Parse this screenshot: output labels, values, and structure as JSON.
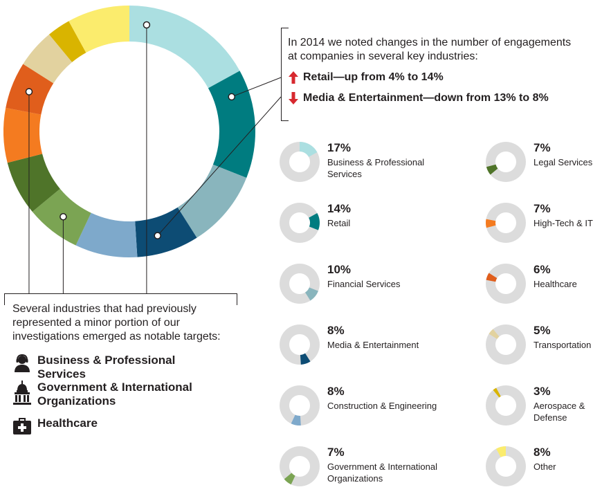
{
  "chart_data": [
    {
      "type": "pie",
      "variant": "donut",
      "categories": [
        "Business & Professional Services",
        "Retail",
        "Financial Services",
        "Media & Entertainment",
        "Construction & Engineering",
        "Government & International Organizations",
        "Legal Services",
        "High-Tech & IT",
        "Healthcare",
        "Transportation",
        "Aerospace & Defense",
        "Other"
      ],
      "values": [
        17,
        14,
        10,
        8,
        8,
        7,
        7,
        7,
        6,
        5,
        3,
        8
      ],
      "colors": [
        "#abdfe1",
        "#007c80",
        "#89b5bd",
        "#0d4c74",
        "#7ea9cb",
        "#7ba453",
        "#4f7429",
        "#f47b20",
        "#e05e1c",
        "#e2d29f",
        "#d9b400",
        "#fbec6d"
      ]
    }
  ],
  "top_callout": {
    "intro": "In 2014 we noted changes in the number of engagements at companies in several key industries:",
    "up_text": "Retail—up from 4% to 14%",
    "down_text": "Media & Entertainment—down from 13% to 8%",
    "up_color": "#d7282f",
    "down_color": "#d7282f"
  },
  "bottom_callout": {
    "intro": "Several industries that had previously represented a minor portion of our investigations emerged as notable targets:",
    "items": [
      {
        "label": "Business & Professional Services",
        "icon": "business-person-icon"
      },
      {
        "label": "Government & International Organizations",
        "icon": "capitol-building-icon"
      },
      {
        "label": "Healthcare",
        "icon": "medical-kit-icon"
      }
    ]
  },
  "minis": [
    {
      "pct": "17%",
      "label": "Business & Professional Services",
      "value": 17,
      "start": 0,
      "color": "#abdfe1"
    },
    {
      "pct": "14%",
      "label": "Retail",
      "value": 14,
      "start": 17,
      "color": "#007c80"
    },
    {
      "pct": "10%",
      "label": "Financial Services",
      "value": 10,
      "start": 31,
      "color": "#89b5bd"
    },
    {
      "pct": "8%",
      "label": "Media & Entertainment",
      "value": 8,
      "start": 41,
      "color": "#0d4c74"
    },
    {
      "pct": "8%",
      "label": "Construction & Engineering",
      "value": 8,
      "start": 49,
      "color": "#7ea9cb"
    },
    {
      "pct": "7%",
      "label": "Government & International Organizations",
      "value": 7,
      "start": 57,
      "color": "#7ba453"
    },
    {
      "pct": "7%",
      "label": "Legal Services",
      "value": 7,
      "start": 64,
      "color": "#4f7429"
    },
    {
      "pct": "7%",
      "label": "High-Tech & IT",
      "value": 7,
      "start": 71,
      "color": "#f47b20"
    },
    {
      "pct": "6%",
      "label": "Healthcare",
      "value": 6,
      "start": 78,
      "color": "#e05e1c"
    },
    {
      "pct": "5%",
      "label": "Transportation",
      "value": 5,
      "start": 84,
      "color": "#e2d29f"
    },
    {
      "pct": "3%",
      "label": "Aerospace & Defense",
      "value": 3,
      "start": 89,
      "color": "#d9b400"
    },
    {
      "pct": "8%",
      "label": "Other",
      "value": 8,
      "start": 92,
      "color": "#fbec6d"
    }
  ],
  "colors": {
    "track": "#dcdcdc",
    "text": "#231f20",
    "line": "#231f20"
  }
}
